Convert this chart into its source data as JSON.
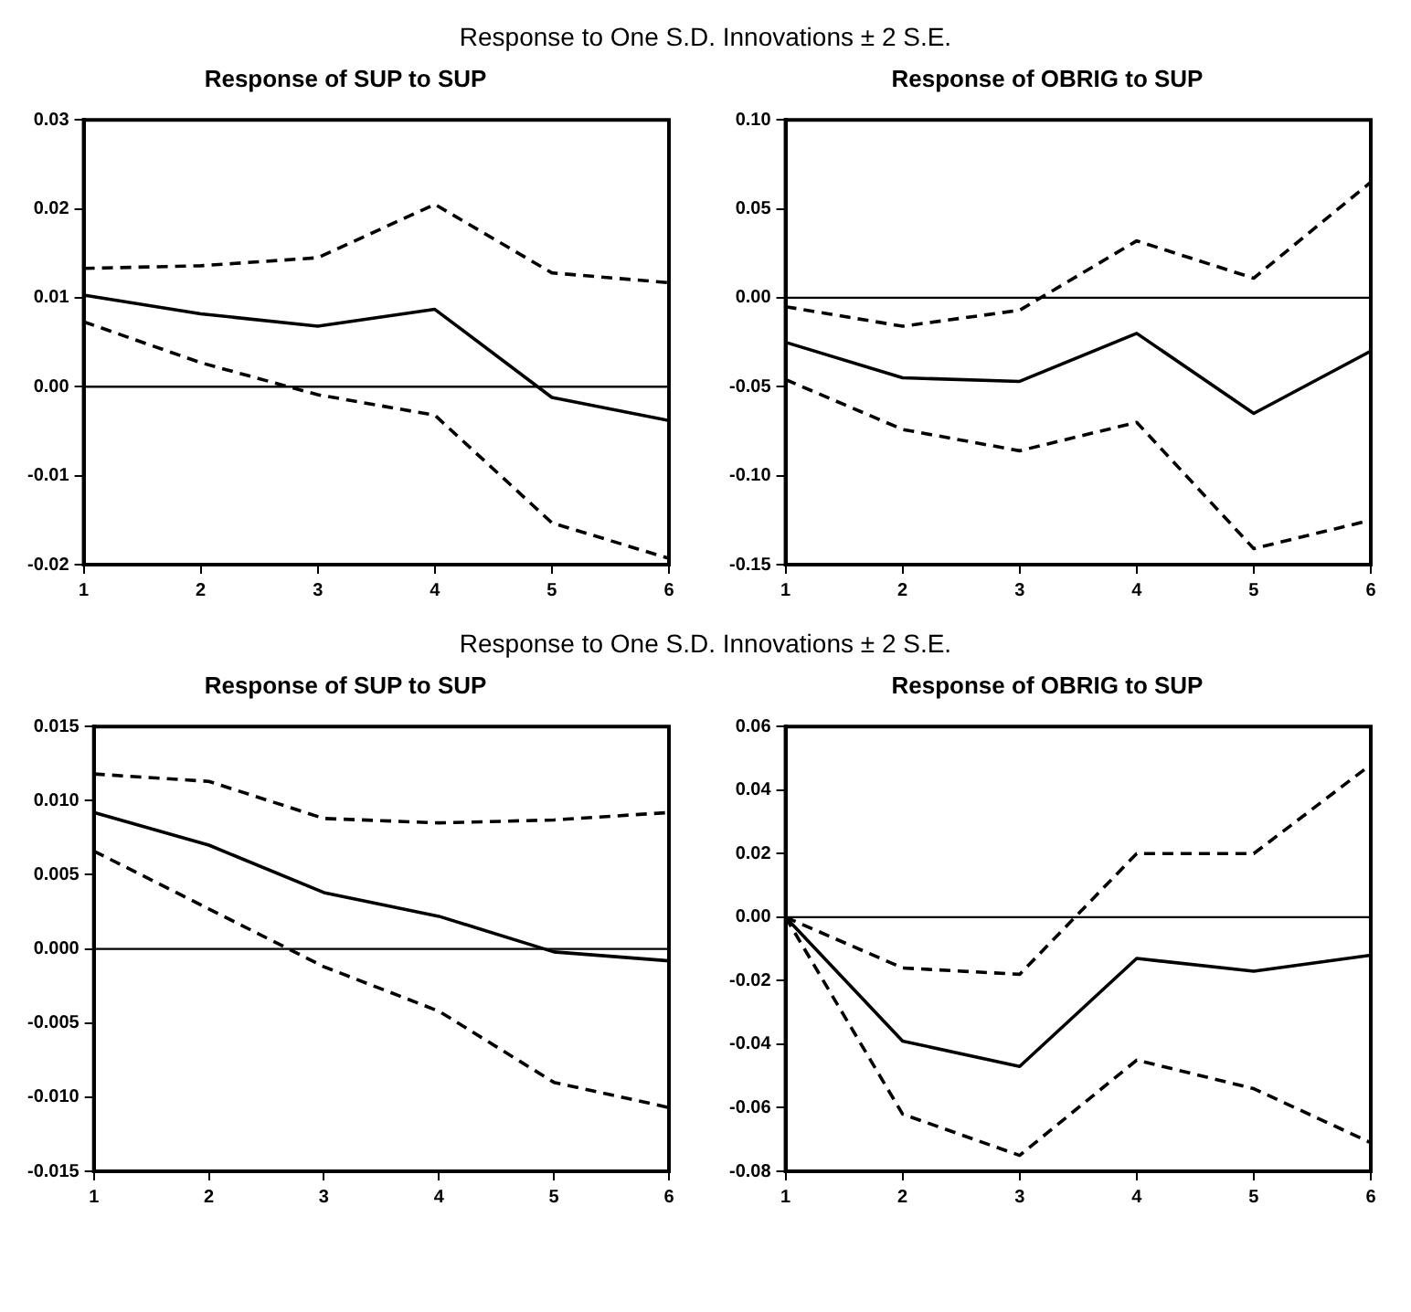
{
  "chart_data": [
    {
      "type": "line",
      "title": "Response of SUP to SUP",
      "annotations": [
        "Response to One S.D. Innovations ± 2 S.E."
      ],
      "x": [
        1,
        2,
        3,
        4,
        5,
        6
      ],
      "xlim": [
        1,
        6
      ],
      "xticks": [
        1,
        2,
        3,
        4,
        5,
        6
      ],
      "ylim": [
        -0.02,
        0.03
      ],
      "yticks": [
        {
          "value": -0.02,
          "label": "-0.02"
        },
        {
          "value": -0.01,
          "label": "-0.01"
        },
        {
          "value": 0,
          "label": "0.00"
        },
        {
          "value": 0.01,
          "label": "0.01"
        },
        {
          "value": 0.02,
          "label": "0.02"
        },
        {
          "value": 0.03,
          "label": "0.03"
        }
      ],
      "grid": false,
      "legend": false,
      "marker": "none",
      "ref_lines": [
        {
          "axis": "y",
          "value": 0,
          "color": "#000000"
        }
      ],
      "series": [
        {
          "color": "#000000",
          "line_style": "solid",
          "values": [
            0.0103,
            0.0082,
            0.0068,
            0.0087,
            -0.0012,
            -0.0038
          ]
        },
        {
          "color": "#000000",
          "line_style": "dashed",
          "values": [
            0.0133,
            0.0136,
            0.0145,
            0.0205,
            0.0128,
            0.0117
          ]
        },
        {
          "color": "#000000",
          "line_style": "dashed",
          "values": [
            0.0073,
            0.0027,
            -0.0009,
            -0.0032,
            -0.0153,
            -0.0193
          ]
        }
      ]
    },
    {
      "type": "line",
      "title": "Response of OBRIG to SUP",
      "x": [
        1,
        2,
        3,
        4,
        5,
        6
      ],
      "xlim": [
        1,
        6
      ],
      "xticks": [
        1,
        2,
        3,
        4,
        5,
        6
      ],
      "ylim": [
        -0.15,
        0.1
      ],
      "yticks": [
        {
          "value": -0.15,
          "label": "-0.15"
        },
        {
          "value": -0.1,
          "label": "-0.10"
        },
        {
          "value": -0.05,
          "label": "-0.05"
        },
        {
          "value": 0,
          "label": "0.00"
        },
        {
          "value": 0.05,
          "label": "0.05"
        },
        {
          "value": 0.1,
          "label": "0.10"
        }
      ],
      "grid": false,
      "legend": false,
      "marker": "none",
      "ref_lines": [
        {
          "axis": "y",
          "value": 0,
          "color": "#000000"
        }
      ],
      "series": [
        {
          "color": "#000000",
          "line_style": "solid",
          "values": [
            -0.025,
            -0.045,
            -0.047,
            -0.02,
            -0.065,
            -0.03
          ]
        },
        {
          "color": "#000000",
          "line_style": "dashed",
          "values": [
            -0.005,
            -0.016,
            -0.007,
            0.032,
            0.011,
            0.065
          ]
        },
        {
          "color": "#000000",
          "line_style": "dashed",
          "values": [
            -0.046,
            -0.074,
            -0.086,
            -0.07,
            -0.141,
            -0.125
          ]
        }
      ]
    },
    {
      "type": "line",
      "title": "Response of SUP to SUP",
      "annotations": [
        "Response to One S.D. Innovations ± 2 S.E."
      ],
      "x": [
        1,
        2,
        3,
        4,
        5,
        6
      ],
      "xlim": [
        1,
        6
      ],
      "xticks": [
        1,
        2,
        3,
        4,
        5,
        6
      ],
      "ylim": [
        -0.015,
        0.015
      ],
      "yticks": [
        {
          "value": -0.015,
          "label": "-0.015"
        },
        {
          "value": -0.01,
          "label": "-0.010"
        },
        {
          "value": -0.005,
          "label": "-0.005"
        },
        {
          "value": 0,
          "label": "0.000"
        },
        {
          "value": 0.005,
          "label": "0.005"
        },
        {
          "value": 0.01,
          "label": "0.010"
        },
        {
          "value": 0.015,
          "label": "0.015"
        }
      ],
      "grid": false,
      "legend": false,
      "marker": "none",
      "ref_lines": [
        {
          "axis": "y",
          "value": 0,
          "color": "#000000"
        }
      ],
      "series": [
        {
          "color": "#000000",
          "line_style": "solid",
          "values": [
            0.0092,
            0.007,
            0.0038,
            0.0022,
            -0.0002,
            -0.0008
          ]
        },
        {
          "color": "#000000",
          "line_style": "dashed",
          "values": [
            0.0118,
            0.0113,
            0.0088,
            0.0085,
            0.0087,
            0.0092
          ]
        },
        {
          "color": "#000000",
          "line_style": "dashed",
          "values": [
            0.0066,
            0.0027,
            -0.0012,
            -0.0042,
            -0.009,
            -0.0107
          ]
        }
      ]
    },
    {
      "type": "line",
      "title": "Response of OBRIG to SUP",
      "x": [
        1,
        2,
        3,
        4,
        5,
        6
      ],
      "xlim": [
        1,
        6
      ],
      "xticks": [
        1,
        2,
        3,
        4,
        5,
        6
      ],
      "ylim": [
        -0.08,
        0.06
      ],
      "yticks": [
        {
          "value": -0.08,
          "label": "-0.08"
        },
        {
          "value": -0.06,
          "label": "-0.06"
        },
        {
          "value": -0.04,
          "label": "-0.04"
        },
        {
          "value": -0.02,
          "label": "-0.02"
        },
        {
          "value": 0,
          "label": "0.00"
        },
        {
          "value": 0.02,
          "label": "0.02"
        },
        {
          "value": 0.04,
          "label": "0.04"
        },
        {
          "value": 0.06,
          "label": "0.06"
        }
      ],
      "grid": false,
      "legend": false,
      "marker": "none",
      "ref_lines": [
        {
          "axis": "y",
          "value": 0,
          "color": "#000000"
        }
      ],
      "series": [
        {
          "color": "#000000",
          "line_style": "solid",
          "values": [
            0,
            -0.039,
            -0.047,
            -0.013,
            -0.017,
            -0.012
          ]
        },
        {
          "color": "#000000",
          "line_style": "dashed",
          "values": [
            0,
            -0.016,
            -0.018,
            0.02,
            0.02,
            0.048
          ]
        },
        {
          "color": "#000000",
          "line_style": "dashed",
          "values": [
            0,
            -0.062,
            -0.075,
            -0.045,
            -0.054,
            -0.071
          ]
        }
      ]
    }
  ]
}
